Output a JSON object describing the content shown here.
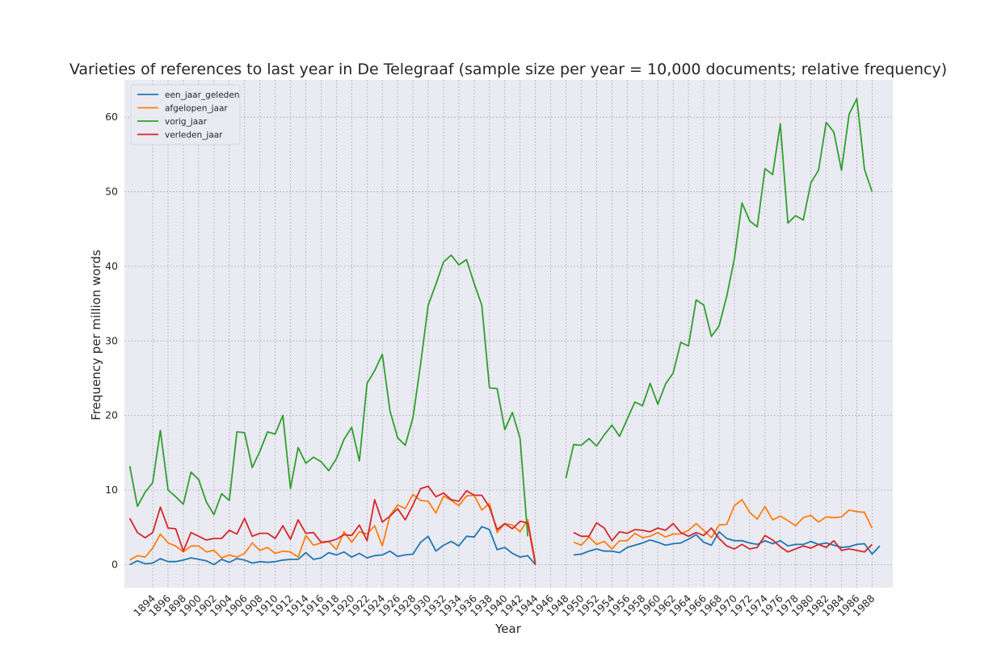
{
  "chart_data": {
    "type": "line",
    "title": "Varieties of references to last year in De Telegraaf (sample size per year = 10,000 documents; relative frequency)",
    "xlabel": "Year",
    "ylabel": "Frequency per million words",
    "xlim": [
      1890.3,
      1990.7
    ],
    "ylim": [
      -3.1,
      65.0
    ],
    "yticks": [
      0,
      10,
      20,
      30,
      40,
      50,
      60
    ],
    "xticks": [
      1894,
      1896,
      1898,
      1900,
      1902,
      1904,
      1906,
      1908,
      1910,
      1912,
      1914,
      1916,
      1918,
      1920,
      1922,
      1924,
      1926,
      1928,
      1930,
      1932,
      1934,
      1936,
      1938,
      1940,
      1942,
      1944,
      1946,
      1948,
      1950,
      1952,
      1954,
      1956,
      1958,
      1960,
      1962,
      1964,
      1966,
      1968,
      1970,
      1972,
      1974,
      1976,
      1978,
      1980,
      1982,
      1984,
      1986,
      1988
    ],
    "grid": true,
    "legend_position": "top-left",
    "x": [
      1891,
      1892,
      1893,
      1894,
      1895,
      1896,
      1897,
      1898,
      1899,
      1900,
      1901,
      1902,
      1903,
      1904,
      1905,
      1906,
      1907,
      1908,
      1909,
      1910,
      1911,
      1912,
      1913,
      1914,
      1915,
      1916,
      1917,
      1918,
      1919,
      1920,
      1921,
      1922,
      1923,
      1924,
      1925,
      1926,
      1927,
      1928,
      1929,
      1930,
      1931,
      1932,
      1933,
      1934,
      1935,
      1936,
      1937,
      1938,
      1939,
      1940,
      1941,
      1942,
      1943,
      1944,
      1945,
      1946,
      1947,
      1948,
      1949,
      1950,
      1951,
      1952,
      1953,
      1954,
      1955,
      1956,
      1957,
      1958,
      1959,
      1960,
      1961,
      1962,
      1963,
      1964,
      1965,
      1966,
      1967,
      1968,
      1969,
      1970,
      1971,
      1972,
      1973,
      1974,
      1975,
      1976,
      1977,
      1978,
      1979,
      1980,
      1981,
      1982,
      1983,
      1984,
      1985,
      1986,
      1987,
      1988,
      1989,
      1990
    ],
    "series": [
      {
        "name": "een_jaar_geleden",
        "color": "#1f77b4",
        "values": [
          0.0,
          0.5,
          0.1,
          0.2,
          0.8,
          0.4,
          0.4,
          0.6,
          0.9,
          0.7,
          0.5,
          0.0,
          0.7,
          0.3,
          0.8,
          0.6,
          0.2,
          0.4,
          0.3,
          0.4,
          0.6,
          0.7,
          0.7,
          1.6,
          0.7,
          0.9,
          1.6,
          1.3,
          1.7,
          1.0,
          1.5,
          0.9,
          1.2,
          1.3,
          1.8,
          1.1,
          1.3,
          1.4,
          3.0,
          3.8,
          1.8,
          2.6,
          3.1,
          2.5,
          3.8,
          3.7,
          5.1,
          4.7,
          2.0,
          2.3,
          1.5,
          1.0,
          1.2,
          0.0,
          null,
          null,
          null,
          null,
          1.3,
          1.4,
          1.8,
          2.1,
          1.8,
          1.8,
          1.6,
          2.3,
          2.6,
          2.9,
          3.3,
          3.0,
          2.6,
          2.8,
          2.9,
          3.4,
          4.0,
          3.0,
          2.6,
          4.4,
          3.5,
          3.2,
          3.2,
          2.9,
          2.7,
          3.2,
          2.8,
          3.2,
          2.5,
          2.7,
          2.7,
          3.1,
          2.7,
          2.9,
          2.6,
          2.3,
          2.4,
          2.7,
          2.8,
          1.4,
          2.5,
          null
        ]
      },
      {
        "name": "afgelopen_jaar",
        "color": "#ff7f0e",
        "values": [
          0.6,
          1.2,
          1.0,
          2.2,
          4.1,
          2.9,
          2.5,
          1.7,
          2.5,
          2.5,
          1.7,
          1.9,
          0.9,
          1.3,
          1.0,
          1.5,
          2.9,
          1.9,
          2.3,
          1.5,
          1.8,
          1.7,
          1.0,
          3.9,
          2.6,
          2.9,
          3.1,
          2.0,
          4.4,
          3.0,
          4.4,
          4.1,
          5.2,
          2.5,
          6.6,
          8.0,
          7.5,
          9.4,
          8.6,
          8.5,
          6.9,
          9.2,
          8.6,
          7.9,
          9.2,
          9.3,
          7.3,
          8.2,
          4.3,
          5.5,
          5.3,
          4.4,
          6.0,
          0.3,
          null,
          null,
          null,
          null,
          3.0,
          2.6,
          3.7,
          2.7,
          3.1,
          2.1,
          3.2,
          3.2,
          4.2,
          3.6,
          3.8,
          4.3,
          3.7,
          4.1,
          4.1,
          4.6,
          5.5,
          4.6,
          3.6,
          5.3,
          5.4,
          7.9,
          8.7,
          7.0,
          6.1,
          7.8,
          6.0,
          6.5,
          5.9,
          5.2,
          6.3,
          6.6,
          5.7,
          6.4,
          6.3,
          6.4,
          7.3,
          7.1,
          7.0,
          4.9,
          null,
          null
        ]
      },
      {
        "name": "vorig_jaar",
        "color": "#2ca02c",
        "values": [
          13.2,
          7.8,
          9.7,
          11.0,
          18.0,
          10.0,
          9.1,
          8.1,
          12.4,
          11.4,
          8.4,
          6.7,
          9.5,
          8.6,
          17.8,
          17.7,
          13.0,
          15.2,
          17.8,
          17.5,
          20.0,
          10.2,
          15.7,
          13.6,
          14.4,
          13.8,
          12.6,
          14.2,
          16.8,
          18.4,
          13.9,
          24.3,
          26.0,
          28.2,
          20.6,
          17.0,
          16.0,
          19.7,
          26.9,
          34.8,
          37.6,
          40.6,
          41.5,
          40.2,
          40.9,
          37.7,
          34.8,
          23.7,
          23.6,
          18.1,
          20.4,
          16.9,
          3.8,
          null,
          null,
          null,
          null,
          11.6,
          16.1,
          16.0,
          16.9,
          15.9,
          17.4,
          18.7,
          17.2,
          19.5,
          21.8,
          21.3,
          24.3,
          21.5,
          24.2,
          25.7,
          29.8,
          29.3,
          35.5,
          34.8,
          30.6,
          32.0,
          36.0,
          41.0,
          48.5,
          46.1,
          45.3,
          53.1,
          52.3,
          59.1,
          45.8,
          46.8,
          46.2,
          51.2,
          52.9,
          59.3,
          58.0,
          52.9,
          60.4,
          62.5,
          53.0,
          50.0,
          null,
          null
        ]
      },
      {
        "name": "verleden_jaar",
        "color": "#d62728",
        "values": [
          6.2,
          4.3,
          3.6,
          4.3,
          7.7,
          4.9,
          4.8,
          1.8,
          4.3,
          3.8,
          3.3,
          3.5,
          3.5,
          4.6,
          4.1,
          6.2,
          3.8,
          4.2,
          4.2,
          3.5,
          5.2,
          3.4,
          6.0,
          4.2,
          4.3,
          3.0,
          3.1,
          3.4,
          4.0,
          3.9,
          5.3,
          3.2,
          8.7,
          5.7,
          6.5,
          7.5,
          6.0,
          8.0,
          10.2,
          10.5,
          9.1,
          9.6,
          8.7,
          8.5,
          9.9,
          9.3,
          9.3,
          7.7,
          4.7,
          5.5,
          4.8,
          5.8,
          5.6,
          0.0,
          null,
          null,
          null,
          null,
          4.3,
          3.8,
          3.8,
          5.6,
          4.9,
          3.2,
          4.4,
          4.2,
          4.7,
          4.6,
          4.4,
          4.9,
          4.6,
          5.5,
          4.3,
          3.8,
          4.3,
          3.9,
          4.9,
          3.5,
          2.5,
          2.1,
          2.7,
          2.1,
          2.3,
          3.9,
          3.3,
          2.4,
          1.7,
          2.1,
          2.5,
          2.2,
          2.7,
          2.3,
          3.2,
          1.9,
          2.1,
          1.9,
          1.7,
          2.7,
          null,
          null
        ]
      }
    ]
  }
}
